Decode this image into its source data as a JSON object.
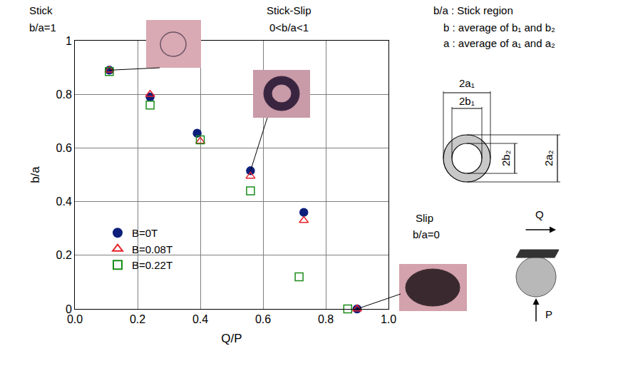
{
  "chart_data": {
    "type": "scatter",
    "xlabel": "Q/P",
    "ylabel": "b/a",
    "xlim": [
      0,
      1
    ],
    "ylim": [
      0,
      1
    ],
    "xticks": [
      {
        "value": 0,
        "label": "0.0"
      },
      {
        "value": 0.2,
        "label": "0.2"
      },
      {
        "value": 0.4,
        "label": "0.4"
      },
      {
        "value": 0.6,
        "label": "0.6"
      },
      {
        "value": 0.8,
        "label": "0.8"
      },
      {
        "value": 1,
        "label": "1.0"
      }
    ],
    "yticks": [
      0,
      0.2,
      0.4,
      0.6,
      0.8,
      1
    ],
    "grid": true,
    "legend": "lower left",
    "series": [
      {
        "name": "B=0T",
        "color": "#0d1f7a",
        "marker": "circle",
        "x": [
          0.11,
          0.24,
          0.39,
          0.56,
          0.73,
          0.9
        ],
        "values": [
          0.89,
          0.79,
          0.655,
          0.515,
          0.36,
          0.0
        ]
      },
      {
        "name": "B=0.08T",
        "color": "#e8202a",
        "marker": "triangle-open",
        "x": [
          0.11,
          0.24,
          0.4,
          0.56,
          0.73,
          0.9
        ],
        "values": [
          0.89,
          0.8,
          0.625,
          0.495,
          0.33,
          0.0
        ]
      },
      {
        "name": "B=0.22T",
        "color": "#1a8c1a",
        "marker": "square-open",
        "x": [
          0.11,
          0.24,
          0.4,
          0.56,
          0.715,
          0.87
        ],
        "values": [
          0.885,
          0.76,
          0.63,
          0.44,
          0.12,
          0.0
        ]
      }
    ],
    "annotations": [
      "Stick",
      "b/a=1",
      "Stick-Slip",
      "0<b/a<1",
      "Slip",
      "b/a=0",
      "b/a : Stick region",
      "b : average of b₁ and b₂",
      "a : average of a₁ and a₂",
      "2a₁",
      "2b₁",
      "2b₂",
      "2a₂",
      "Q",
      "P"
    ]
  }
}
